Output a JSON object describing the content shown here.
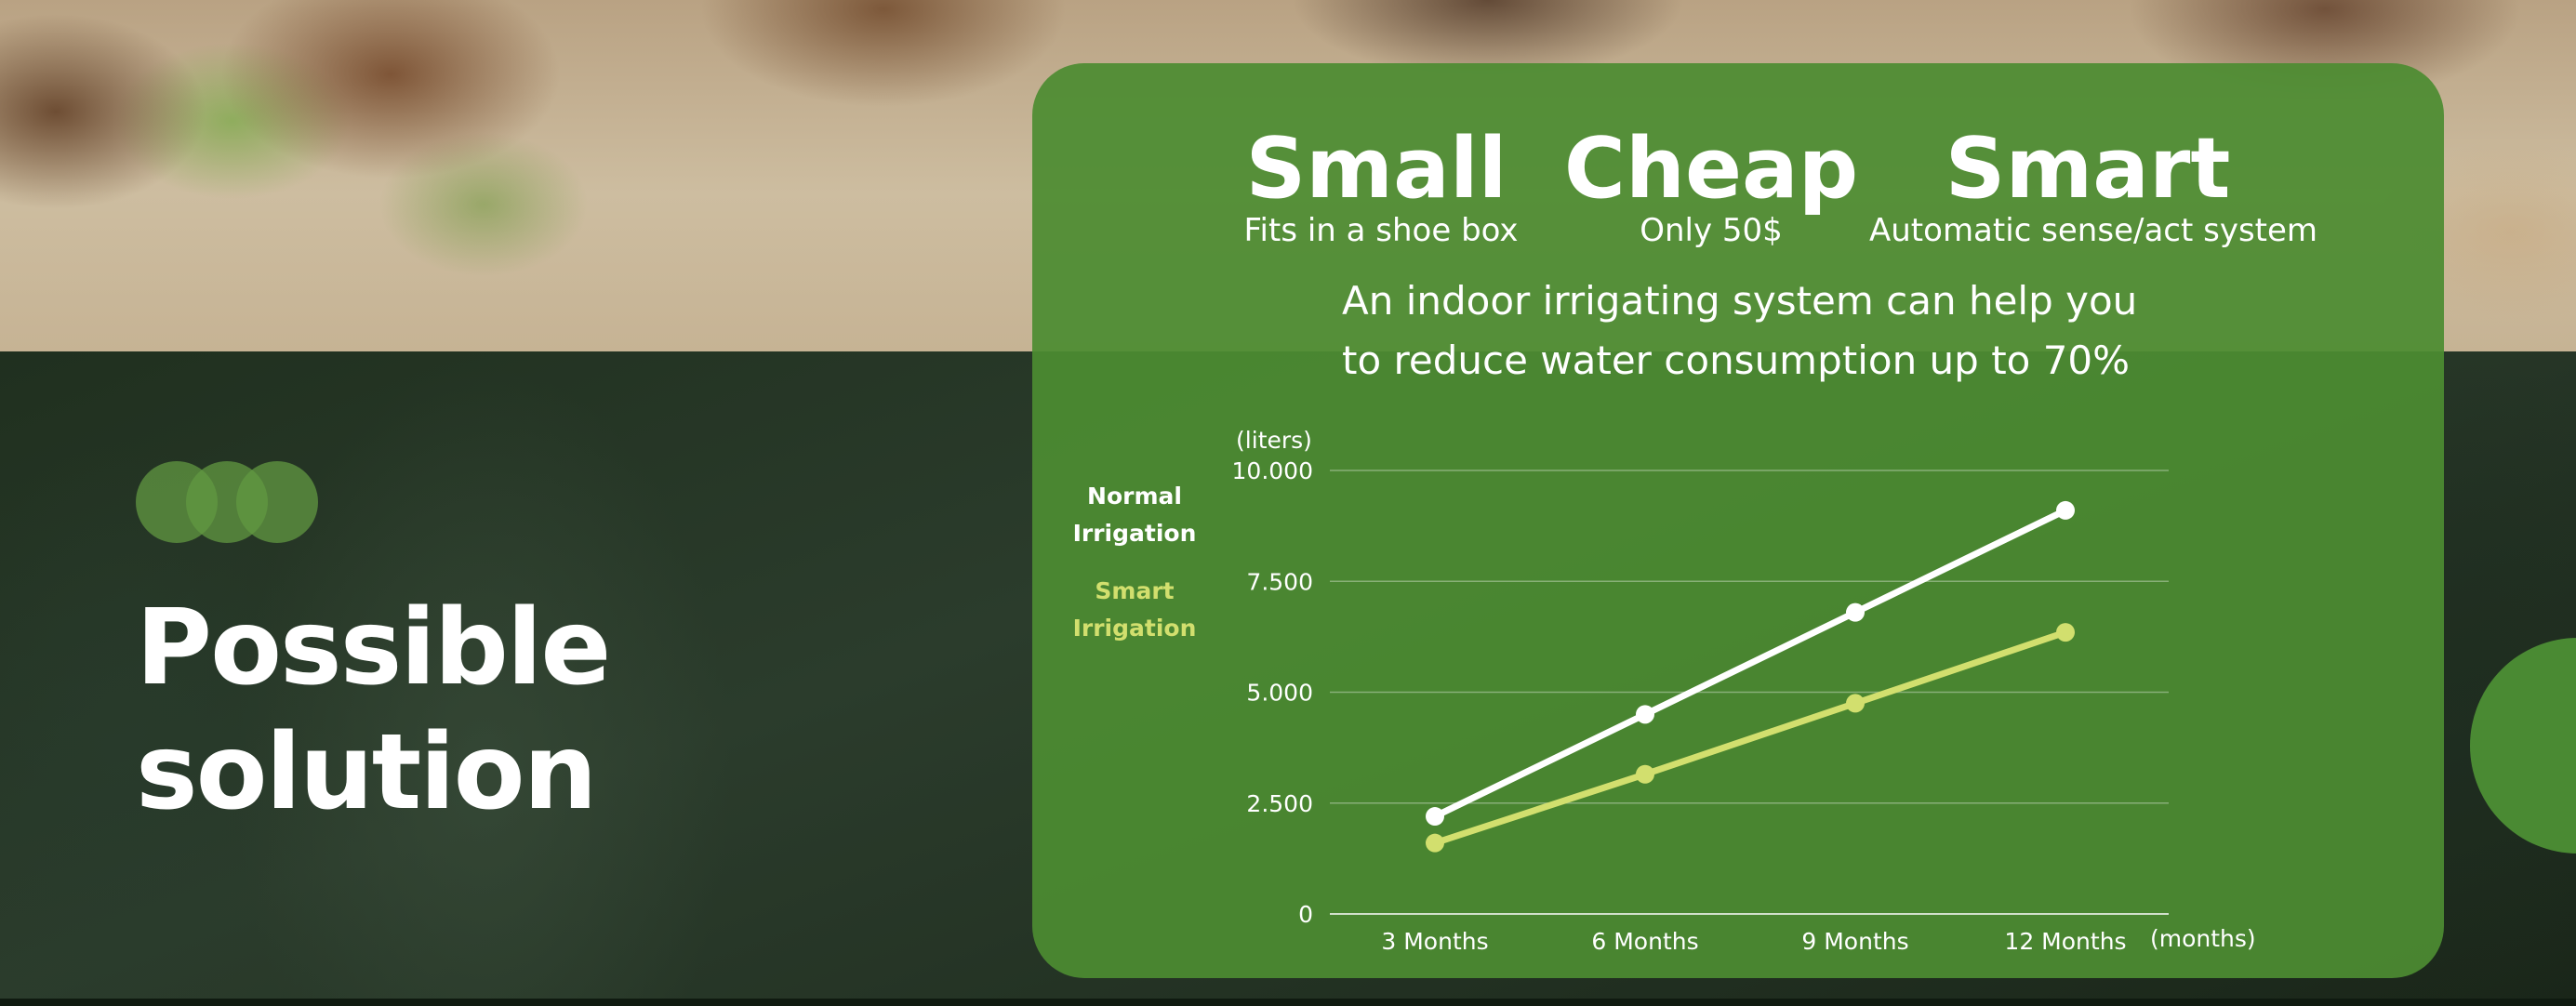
{
  "slide": {
    "heading_line1": "Possible",
    "heading_line2": "solution"
  },
  "features": [
    {
      "title": "Small",
      "subtitle": "Fits in a shoe box"
    },
    {
      "title": "Cheap",
      "subtitle": "Only 50$"
    },
    {
      "title": "Smart",
      "subtitle": "Automatic sense/act system"
    }
  ],
  "tagline": {
    "line1": "An indoor irrigating system can help you",
    "line2": "to reduce water consumption up to 70%"
  },
  "colors": {
    "panel": "#4c8c32",
    "normal_series": "#ffffff",
    "smart_series": "#d2df6e",
    "accent_circle": "#629842"
  },
  "chart_data": {
    "type": "line",
    "categories": [
      "3 Months",
      "6 Months",
      "9 Months",
      "12 Months"
    ],
    "x_unit": "(months)",
    "y_unit": "(liters)",
    "y_ticks": [
      "0",
      "2.500",
      "5.000",
      "7.500",
      "10.000"
    ],
    "ylim": [
      0,
      10000
    ],
    "grid": true,
    "legend_position": "left",
    "series": [
      {
        "name": "Normal Irrigation",
        "name_line1": "Normal",
        "name_line2": "Irrigation",
        "values": [
          2200,
          4500,
          6800,
          9100
        ],
        "color": "#ffffff"
      },
      {
        "name": "Smart Irrigation",
        "name_line1": "Smart",
        "name_line2": "Irrigation",
        "values": [
          1600,
          3150,
          4750,
          6350
        ],
        "color": "#d2df6e"
      }
    ]
  }
}
